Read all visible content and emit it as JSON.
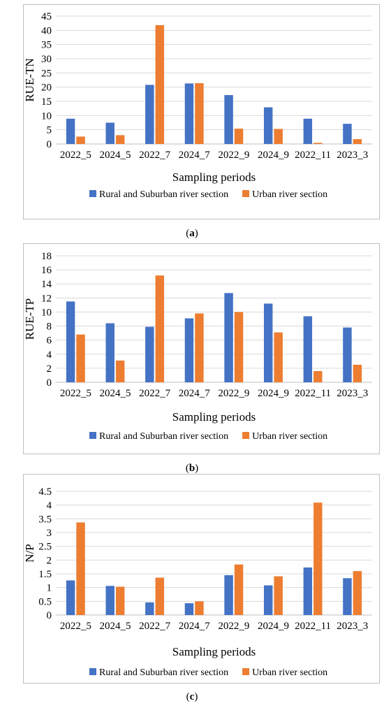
{
  "colors": {
    "rural": "#4472C4",
    "urban": "#ED7D31",
    "grid": "#D9D9D9",
    "frame": "#BFBFBF"
  },
  "chart_data": [
    {
      "type": "bar",
      "caption": "a",
      "categories": [
        "2022_5",
        "2024_5",
        "2022_7",
        "2024_7",
        "2022_9",
        "2024_9",
        "2022_11",
        "2023_3"
      ],
      "series": [
        {
          "name": "Rural and Suburban river section",
          "values": [
            8.9,
            7.5,
            20.8,
            21.3,
            17.2,
            12.9,
            8.9,
            7.1
          ]
        },
        {
          "name": "Urban river section",
          "values": [
            2.6,
            3.1,
            41.8,
            21.4,
            5.4,
            5.3,
            0.4,
            1.7
          ]
        }
      ],
      "ylabel": "RUE-TN",
      "xlabel": "Sampling periods",
      "ylim": [
        0,
        45
      ],
      "yticks": [
        "0",
        "5",
        "10",
        "15",
        "20",
        "25",
        "30",
        "35",
        "40",
        "45"
      ],
      "grid": true,
      "legend": "bottom"
    },
    {
      "type": "bar",
      "caption": "b",
      "categories": [
        "2022_5",
        "2024_5",
        "2022_7",
        "2024_7",
        "2022_9",
        "2024_9",
        "2022_11",
        "2023_3"
      ],
      "series": [
        {
          "name": "Rural and Suburban river section",
          "values": [
            11.5,
            8.4,
            7.9,
            9.1,
            12.7,
            11.2,
            9.4,
            7.8
          ]
        },
        {
          "name": "Urban river section",
          "values": [
            6.8,
            3.1,
            15.2,
            9.8,
            10.0,
            7.1,
            1.6,
            2.5
          ]
        }
      ],
      "ylabel": "RUE-TP",
      "xlabel": "Sampling periods",
      "ylim": [
        0,
        18
      ],
      "yticks": [
        "0",
        "2",
        "4",
        "6",
        "8",
        "10",
        "12",
        "14",
        "16",
        "18"
      ],
      "grid": true,
      "legend": "bottom"
    },
    {
      "type": "bar",
      "caption": "c",
      "categories": [
        "2022_5",
        "2024_5",
        "2022_7",
        "2024_7",
        "2022_9",
        "2024_9",
        "2022_11",
        "2023_3"
      ],
      "series": [
        {
          "name": "Rural and Suburban river section",
          "values": [
            1.26,
            1.06,
            0.46,
            0.43,
            1.45,
            1.08,
            1.73,
            1.34
          ]
        },
        {
          "name": "Urban river section",
          "values": [
            3.37,
            1.03,
            1.36,
            0.5,
            1.84,
            1.41,
            4.09,
            1.6
          ]
        }
      ],
      "ylabel": "N/P",
      "xlabel": "Sampling periods",
      "ylim": [
        0,
        4.5
      ],
      "yticks": [
        "0",
        "0.5",
        "1",
        "1.5",
        "2",
        "2.5",
        "3",
        "3.5",
        "4",
        "4.5"
      ],
      "grid": true,
      "legend": "bottom"
    }
  ]
}
